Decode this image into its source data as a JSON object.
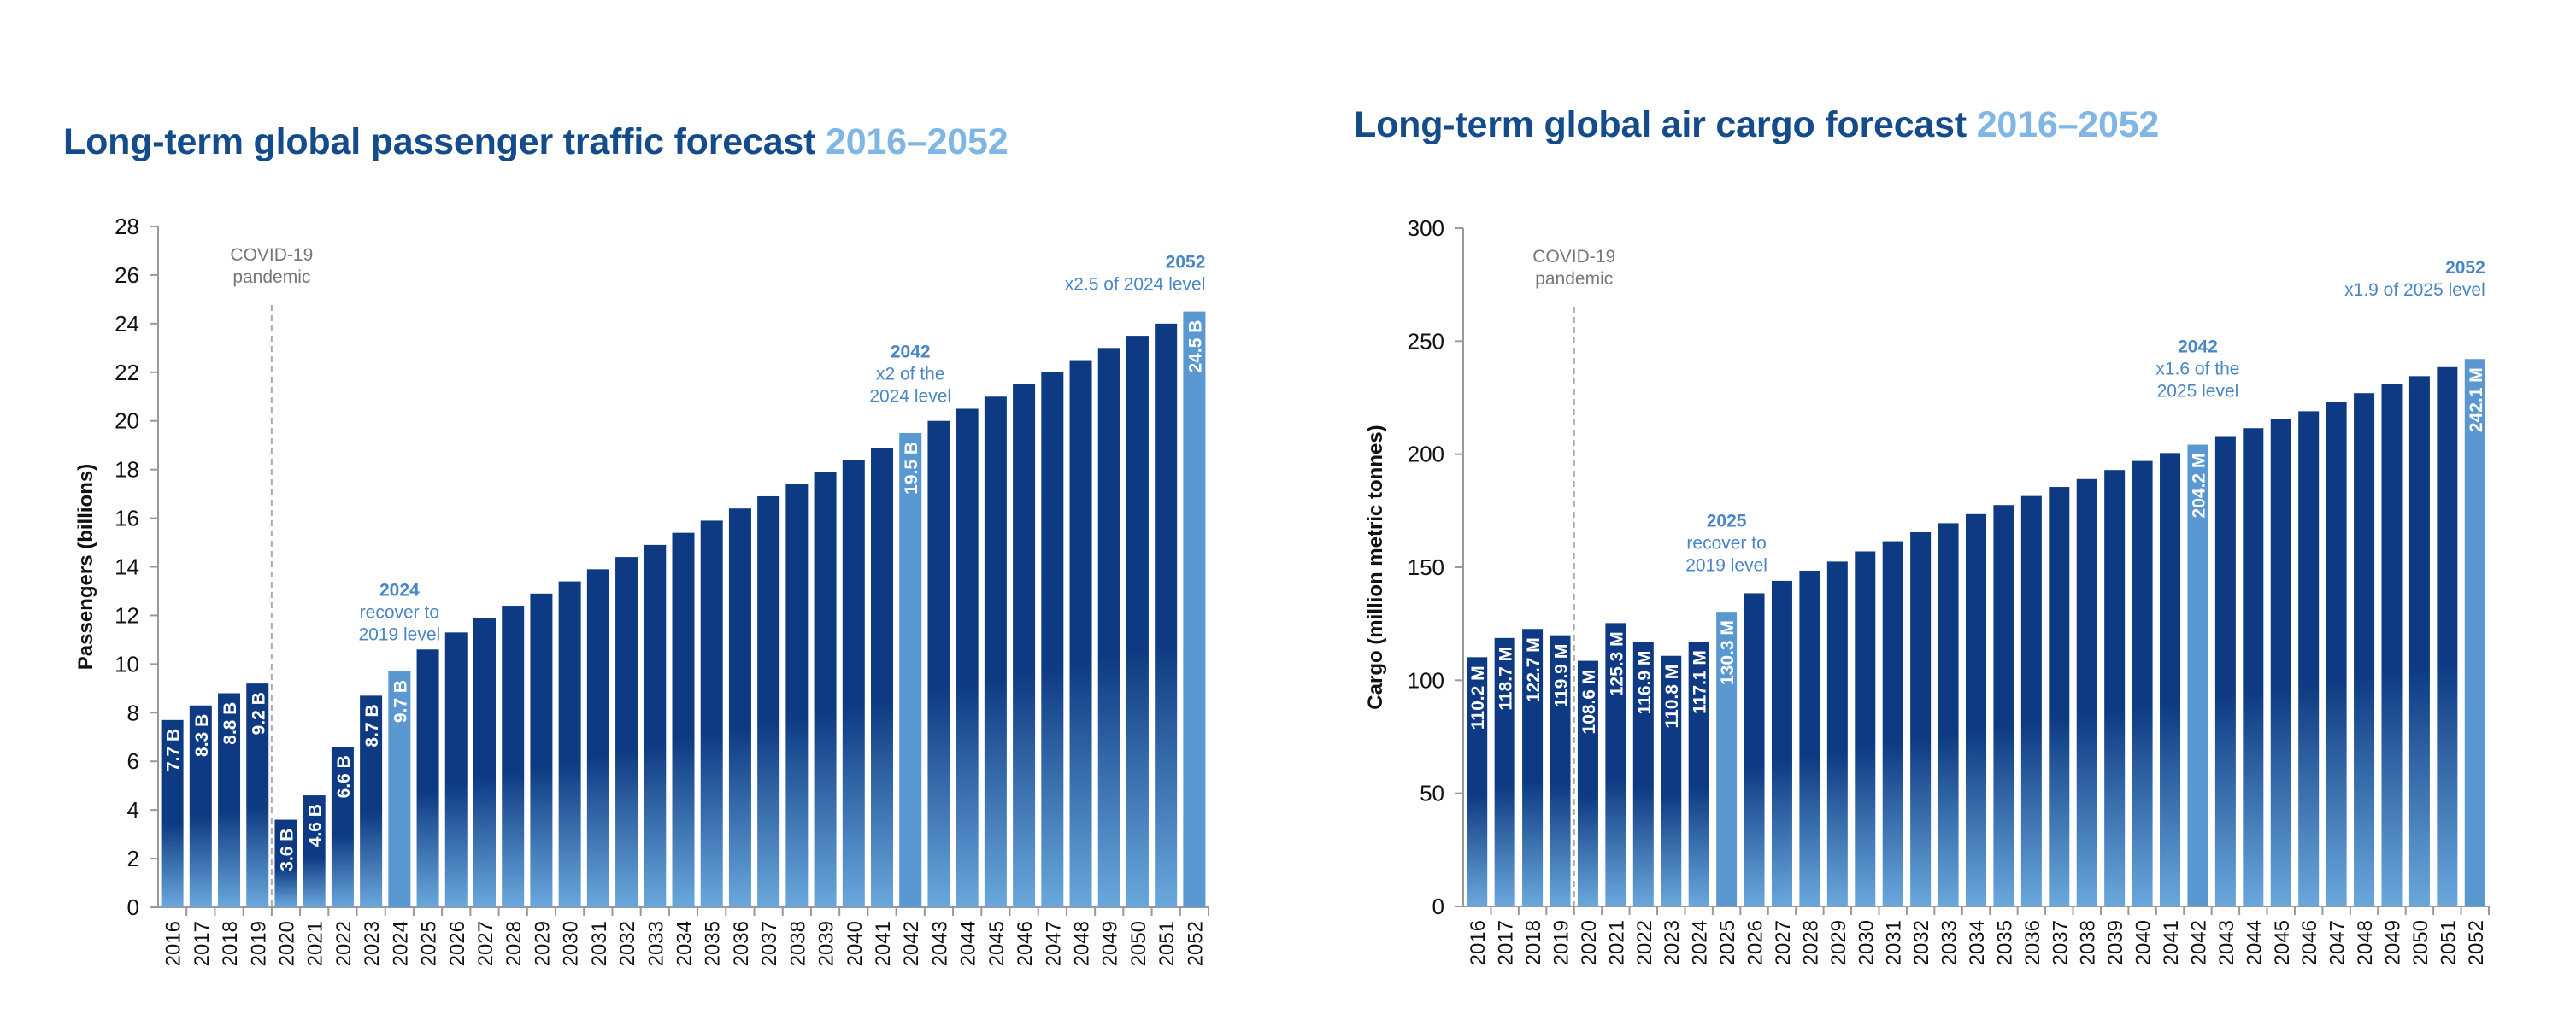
{
  "chart_data": [
    {
      "type": "bar",
      "title_main": "Long-term global passenger traffic forecast ",
      "title_highlight": "2016–2052",
      "ylabel": "Passengers (billions)",
      "xlabel": "",
      "ylim": [
        0,
        28
      ],
      "yticks": [
        0,
        2,
        4,
        6,
        8,
        10,
        12,
        14,
        16,
        18,
        20,
        22,
        24,
        26,
        28
      ],
      "categories": [
        "2016",
        "2017",
        "2018",
        "2019",
        "2020",
        "2021",
        "2022",
        "2023",
        "2024",
        "2025",
        "2026",
        "2027",
        "2028",
        "2029",
        "2030",
        "2031",
        "2032",
        "2033",
        "2034",
        "2035",
        "2036",
        "2037",
        "2038",
        "2039",
        "2040",
        "2041",
        "2042",
        "2043",
        "2044",
        "2045",
        "2046",
        "2047",
        "2048",
        "2049",
        "2050",
        "2051",
        "2052"
      ],
      "values": [
        7.7,
        8.3,
        8.8,
        9.2,
        3.6,
        4.6,
        6.6,
        8.7,
        9.7,
        10.6,
        11.3,
        11.9,
        12.4,
        12.9,
        13.4,
        13.9,
        14.4,
        14.9,
        15.4,
        15.9,
        16.4,
        16.9,
        17.4,
        17.9,
        18.4,
        18.9,
        19.5,
        20.0,
        20.5,
        21.0,
        21.5,
        22.0,
        22.5,
        23.0,
        23.5,
        24.0,
        24.5
      ],
      "value_labels": {
        "2016": "7.7 B",
        "2017": "8.3 B",
        "2018": "8.8 B",
        "2019": "9.2 B",
        "2020": "3.6 B",
        "2021": "4.6 B",
        "2022": "6.6 B",
        "2023": "8.7 B",
        "2024": "9.7 B",
        "2042": "19.5 B",
        "2052": "24.5 B"
      },
      "highlight_categories": [
        "2024",
        "2042",
        "2052"
      ],
      "divider_after": "2019",
      "divider_label": [
        "COVID-19",
        "pandemic"
      ],
      "annotations": [
        {
          "category": "2024",
          "bold": "2024",
          "lines": [
            "recover to",
            "2019 level"
          ],
          "align": "center",
          "value": 12.8
        },
        {
          "category": "2042",
          "bold": "2042",
          "lines": [
            "x2 of the",
            "2024 level"
          ],
          "align": "center",
          "value": 22.6
        },
        {
          "category": "2052",
          "bold": "2052",
          "lines": [
            "x2.5 of 2024 level"
          ],
          "align": "end",
          "value": 26.3
        }
      ],
      "colors": {
        "bar_top": "#0d3a82",
        "bar_bottom": "#6aa8dc",
        "highlight": "#5a98d2",
        "annotation": "#4a86c5",
        "divider": "#aaaaaa",
        "divider_text": "#777777",
        "axis": "#999999",
        "text": "#111111"
      }
    },
    {
      "type": "bar",
      "title_main": "Long-term global air cargo forecast ",
      "title_highlight": "2016–2052",
      "ylabel": "Cargo (million metric tonnes)",
      "xlabel": "",
      "ylim": [
        0,
        300
      ],
      "yticks": [
        0,
        50,
        100,
        150,
        200,
        250,
        300
      ],
      "categories": [
        "2016",
        "2017",
        "2018",
        "2019",
        "2020",
        "2021",
        "2022",
        "2023",
        "2024",
        "2025",
        "2026",
        "2027",
        "2028",
        "2029",
        "2030",
        "2031",
        "2032",
        "2033",
        "2034",
        "2035",
        "2036",
        "2037",
        "2038",
        "2039",
        "2040",
        "2041",
        "2042",
        "2043",
        "2044",
        "2045",
        "2046",
        "2047",
        "2048",
        "2049",
        "2050",
        "2051",
        "2052"
      ],
      "values": [
        110.2,
        118.7,
        122.7,
        119.9,
        108.6,
        125.3,
        116.9,
        110.8,
        117.1,
        130.3,
        138.5,
        144.0,
        148.5,
        152.5,
        157.0,
        161.5,
        165.5,
        169.5,
        173.5,
        177.5,
        181.5,
        185.5,
        189.0,
        193.0,
        197.0,
        200.5,
        204.2,
        208.0,
        211.5,
        215.5,
        219.0,
        223.0,
        227.0,
        231.0,
        234.5,
        238.5,
        242.1
      ],
      "value_labels": {
        "2016": "110.2 M",
        "2017": "118.7 M",
        "2018": "122.7 M",
        "2019": "119.9 M",
        "2020": "108.6 M",
        "2021": "125.3 M",
        "2022": "116.9 M",
        "2023": "110.8 M",
        "2024": "117.1 M",
        "2025": "130.3 M",
        "2042": "204.2 M",
        "2052": "242.1 M"
      },
      "highlight_categories": [
        "2025",
        "2042",
        "2052"
      ],
      "divider_after": "2019",
      "divider_label": [
        "COVID-19",
        "pandemic"
      ],
      "annotations": [
        {
          "category": "2025",
          "bold": "2025",
          "lines": [
            "recover to",
            "2019 level"
          ],
          "align": "center",
          "value": 168
        },
        {
          "category": "2042",
          "bold": "2042",
          "lines": [
            "x1.6 of the",
            "2025 level"
          ],
          "align": "center",
          "value": 245
        },
        {
          "category": "2052",
          "bold": "2052",
          "lines": [
            "x1.9 of 2025 level"
          ],
          "align": "end",
          "value": 280
        }
      ],
      "colors": {
        "bar_top": "#0d3a82",
        "bar_bottom": "#6aa8dc",
        "highlight": "#5a98d2",
        "annotation": "#4a86c5",
        "divider": "#aaaaaa",
        "divider_text": "#777777",
        "axis": "#999999",
        "text": "#111111"
      }
    }
  ]
}
